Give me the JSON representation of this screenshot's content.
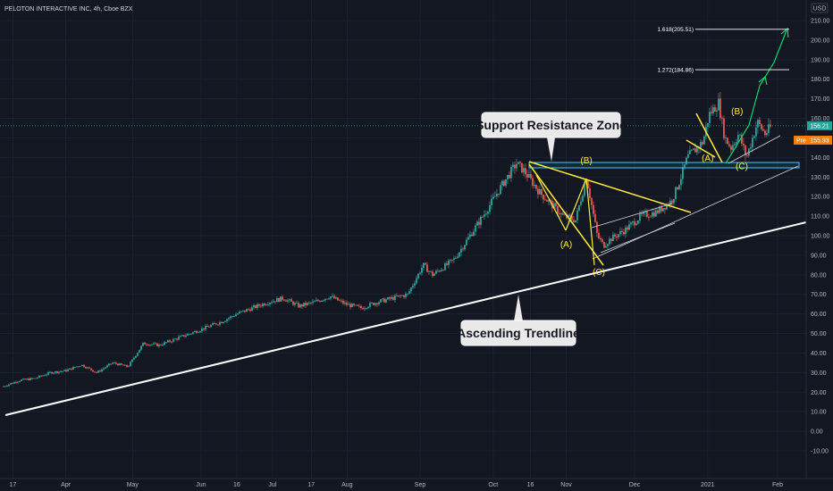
{
  "header": {
    "title": "PELOTON INTERACTIVE INC, 4h, Cboe BZX"
  },
  "chart_data": {
    "type": "candlestick",
    "currency": "USD",
    "ylim": [
      -10,
      215
    ],
    "y_ticks": [
      -10,
      0,
      10,
      20,
      30,
      40,
      50,
      60,
      70,
      80,
      90,
      100,
      110,
      120,
      130,
      140,
      150,
      160,
      170,
      180,
      190,
      200,
      210
    ],
    "x_ticks": [
      {
        "label": "17",
        "t": 0.6
      },
      {
        "label": "Apr",
        "t": 4
      },
      {
        "label": "May",
        "t": 8.3
      },
      {
        "label": "Jun",
        "t": 12.7
      },
      {
        "label": "16",
        "t": 15
      },
      {
        "label": "Jul",
        "t": 17.3
      },
      {
        "label": "17",
        "t": 19.8
      },
      {
        "label": "Aug",
        "t": 22.1
      },
      {
        "label": "Sep",
        "t": 26.8
      },
      {
        "label": "Oct",
        "t": 31.5
      },
      {
        "label": "16",
        "t": 33.9
      },
      {
        "label": "Nov",
        "t": 36.2
      },
      {
        "label": "Dec",
        "t": 40.6
      },
      {
        "label": "2021",
        "t": 45.3
      },
      {
        "label": "Feb",
        "t": 49.8
      }
    ],
    "price_path": [
      [
        0,
        23
      ],
      [
        1,
        26
      ],
      [
        2,
        27
      ],
      [
        3,
        30
      ],
      [
        4,
        31
      ],
      [
        5,
        34
      ],
      [
        6,
        30
      ],
      [
        7,
        35
      ],
      [
        8,
        33
      ],
      [
        9,
        45
      ],
      [
        10,
        44
      ],
      [
        11,
        47
      ],
      [
        12,
        50
      ],
      [
        13,
        53
      ],
      [
        14,
        56
      ],
      [
        15,
        60
      ],
      [
        16,
        63
      ],
      [
        17,
        66
      ],
      [
        18,
        68
      ],
      [
        19,
        64
      ],
      [
        20,
        66
      ],
      [
        21,
        69
      ],
      [
        22,
        65
      ],
      [
        23,
        63
      ],
      [
        24,
        66
      ],
      [
        25,
        68
      ],
      [
        26,
        70
      ],
      [
        27,
        85
      ],
      [
        27.6,
        80
      ],
      [
        28.5,
        85
      ],
      [
        29,
        88
      ],
      [
        30,
        100
      ],
      [
        31,
        112
      ],
      [
        32,
        125
      ],
      [
        33,
        137
      ],
      [
        33.5,
        133
      ],
      [
        34.5,
        122
      ],
      [
        35,
        118
      ],
      [
        36,
        110
      ],
      [
        36.8,
        108
      ],
      [
        37.5,
        130
      ],
      [
        38.2,
        100
      ],
      [
        38.6,
        95
      ],
      [
        39,
        98
      ],
      [
        40,
        103
      ],
      [
        41,
        110
      ],
      [
        42,
        112
      ],
      [
        43,
        118
      ],
      [
        43.5,
        128
      ],
      [
        44,
        140
      ],
      [
        45,
        148
      ],
      [
        45.4,
        162
      ],
      [
        46,
        168
      ],
      [
        46.4,
        150
      ],
      [
        46.8,
        145
      ],
      [
        47.3,
        152
      ],
      [
        47.8,
        140
      ],
      [
        48.5,
        158
      ],
      [
        49,
        152
      ],
      [
        49.4,
        156
      ]
    ],
    "current_price": "156.21",
    "premarket_label": "Pre",
    "premarket_price": "155.93",
    "fib_levels": [
      {
        "label": "1.618(205.51)",
        "value": 205.51
      },
      {
        "label": "1.272(184.86)",
        "value": 184.86
      }
    ],
    "wave_labels": [
      {
        "label": "(B)",
        "t": 37.5,
        "v": 137
      },
      {
        "label": "(A)",
        "t": 36.2,
        "v": 94
      },
      {
        "label": "(C)",
        "t": 38.3,
        "v": 80
      },
      {
        "label": "(B)",
        "t": 47.2,
        "v": 162
      },
      {
        "label": "(A)",
        "t": 45.3,
        "v": 138
      },
      {
        "label": "(C)",
        "t": 47.5,
        "v": 134
      }
    ],
    "annotations": {
      "support_zone": "Support Resistance Zone",
      "trendline": "Ascending Trendline"
    }
  }
}
